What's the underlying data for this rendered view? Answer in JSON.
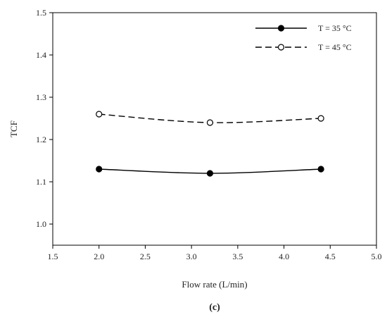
{
  "panel_label": "(c)",
  "chart_data": {
    "type": "line",
    "xlabel": "Flow rate (L/min)",
    "ylabel": "TCF",
    "xlim": [
      1.5,
      5.0
    ],
    "ylim": [
      0.95,
      1.5
    ],
    "xticks": [
      1.5,
      2.0,
      2.5,
      3.0,
      3.5,
      4.0,
      4.5,
      5.0
    ],
    "yticks": [
      1.0,
      1.1,
      1.2,
      1.3,
      1.4,
      1.5
    ],
    "xtick_labels": [
      "1.5",
      "2.0",
      "2.5",
      "3.0",
      "3.5",
      "4.0",
      "4.5",
      "5.0"
    ],
    "ytick_labels": [
      "1.0",
      "1.1",
      "1.2",
      "1.3",
      "1.4",
      "1.5"
    ],
    "grid": false,
    "legend_position": "top-right",
    "series": [
      {
        "name": "T = 35 °C",
        "x": [
          2.0,
          3.2,
          4.4
        ],
        "y": [
          1.13,
          1.12,
          1.13
        ],
        "line_style": "solid",
        "marker": "filled-circle",
        "color": "#000000"
      },
      {
        "name": "T = 45 °C",
        "x": [
          2.0,
          3.2,
          4.4
        ],
        "y": [
          1.26,
          1.24,
          1.25
        ],
        "line_style": "dashed",
        "marker": "open-circle",
        "color": "#000000"
      }
    ]
  }
}
